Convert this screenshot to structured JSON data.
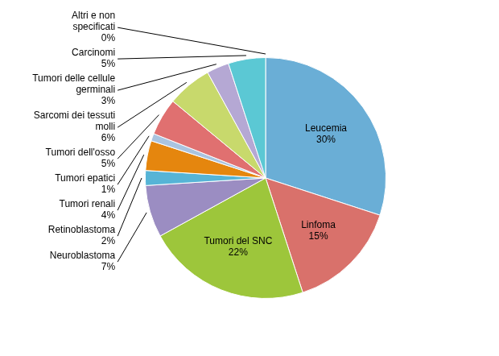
{
  "chart_data": {
    "type": "pie",
    "categories": [
      "Leucemia",
      "Linfoma",
      "Tumori del SNC",
      "Neuroblastoma",
      "Retinoblastoma",
      "Tumori renali",
      "Tumori epatici",
      "Tumori dell'osso",
      "Sarcomi dei tessuti\nmolli",
      "Tumori delle cellule\ngerminali",
      "Carcinomi",
      "Altri e non\nspecificati"
    ],
    "values": [
      30,
      15,
      22,
      7,
      2,
      4,
      1,
      5,
      6,
      3,
      5,
      0
    ],
    "value_labels": [
      "30%",
      "15%",
      "22%",
      "7%",
      "2%",
      "4%",
      "1%",
      "5%",
      "6%",
      "3%",
      "5%",
      "0%"
    ],
    "colors": [
      "#6aaed6",
      "#d9716b",
      "#9DC63B",
      "#9b8dc2",
      "#56b4d6",
      "#e5860e",
      "#aac4e0",
      "#e07070",
      "#c8d96c",
      "#b5a8d4",
      "#5bc8d4",
      "#e8b86a"
    ],
    "data_labels": true
  }
}
